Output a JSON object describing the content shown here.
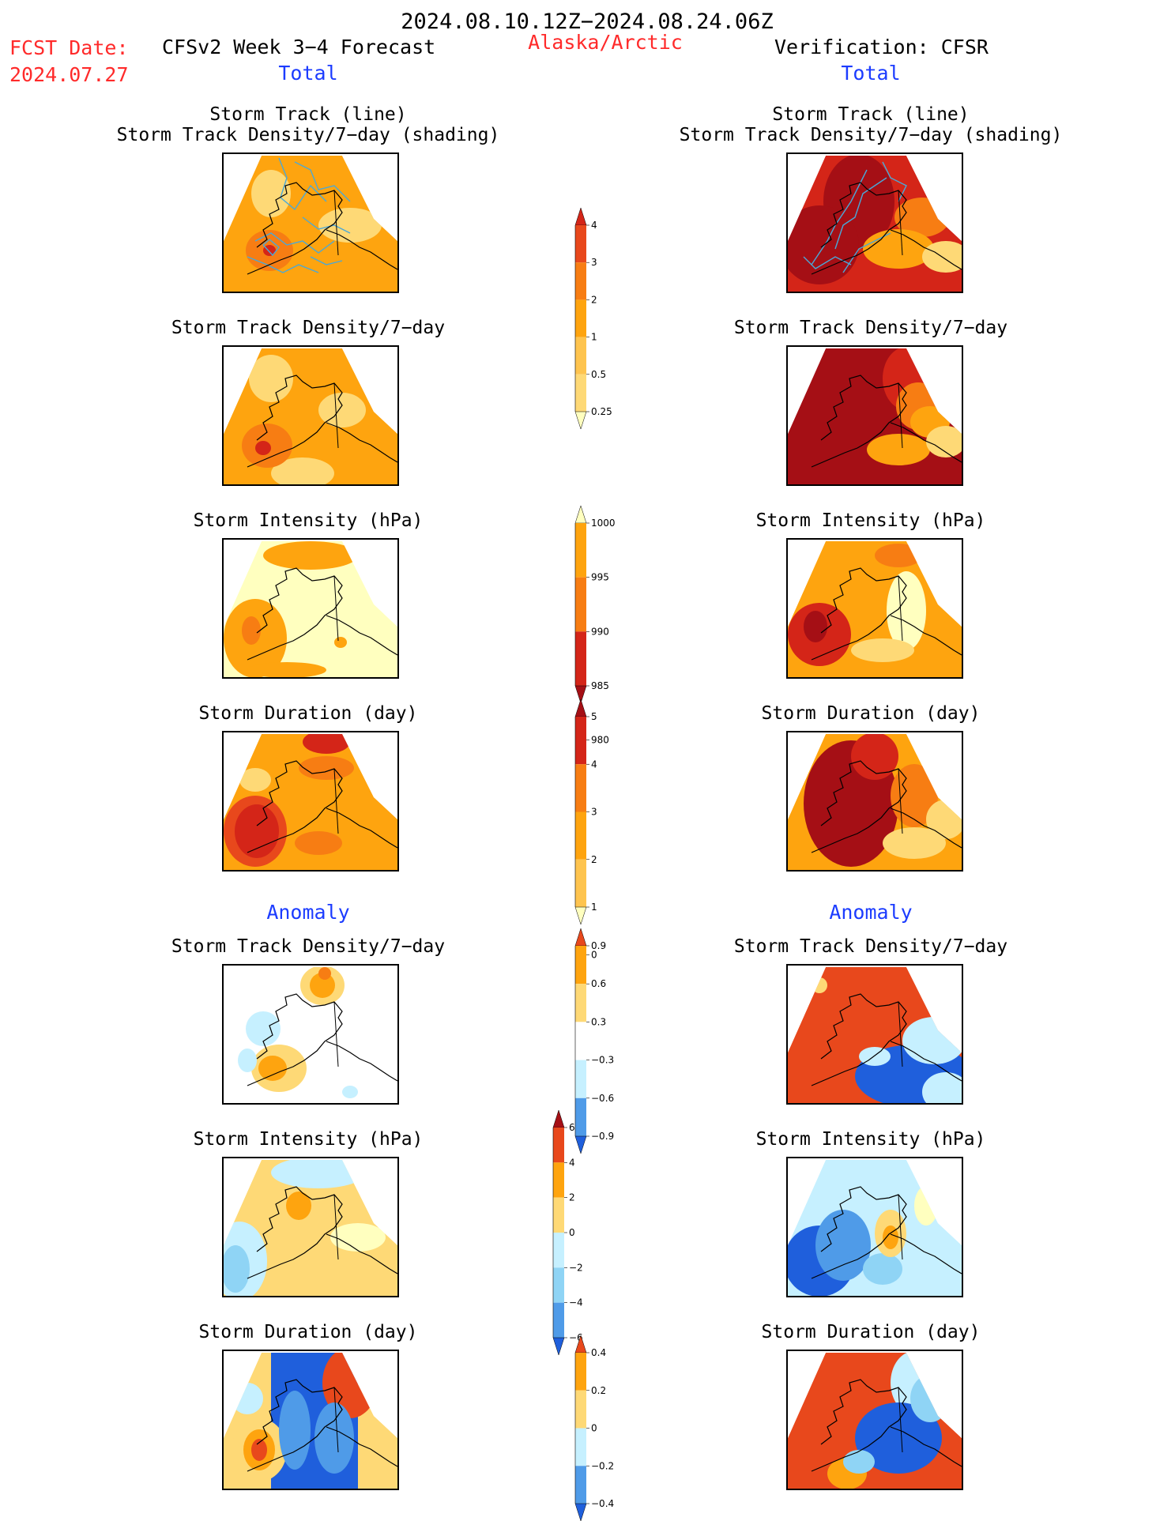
{
  "header": {
    "period": "2024.08.10.12Z−2024.08.24.06Z",
    "fcst_label": "FCST Date:",
    "fcst_date": "2024.07.27",
    "model": "CFSv2 Week 3−4 Forecast",
    "region": "Alaska/Arctic",
    "verification": "Verification: CFSR",
    "total_left": "Total",
    "total_right": "Total",
    "anomaly_left": "Anomaly",
    "anomaly_right": "Anomaly"
  },
  "panel_titles": {
    "track_line": "Storm Track (line)",
    "track_shading": "Storm Track Density/7−day (shading)",
    "density": "Storm Track Density/7−day",
    "intensity": "Storm Intensity (hPa)",
    "duration": "Storm Duration (day)"
  },
  "colors": {
    "pale_yellow": "#ffffbf",
    "light_orange": "#fed976",
    "orange": "#fea40f",
    "dark_orange": "#f77d13",
    "red_orange": "#e8481c",
    "red": "#d42518",
    "dark_red": "#a50f15",
    "pale_blue": "#c6f0ff",
    "light_blue": "#8fd4f5",
    "mid_blue": "#4f9be8",
    "blue": "#1f5fdc",
    "track_line": "#4aa8d8",
    "land_outline": "#000000"
  },
  "chart_data": [
    {
      "type": "heatmap",
      "name": "total-density",
      "colorbar_levels": [
        0.25,
        0.5,
        1,
        2,
        3,
        4
      ],
      "colorbar_labels": [
        "4",
        "3",
        "2",
        "1",
        "0.5",
        "0.25"
      ]
    },
    {
      "type": "heatmap",
      "name": "total-intensity",
      "colorbar_levels": [
        1000,
        995,
        990,
        985,
        980
      ],
      "colorbar_labels": [
        "1000",
        "995",
        "990",
        "985",
        "980"
      ]
    },
    {
      "type": "heatmap",
      "name": "total-duration",
      "colorbar_levels": [
        0,
        1,
        2,
        3,
        4,
        5
      ],
      "colorbar_labels": [
        "5",
        "4",
        "3",
        "2",
        "1",
        "0"
      ]
    },
    {
      "type": "heatmap",
      "name": "anomaly-density",
      "colorbar_levels": [
        -0.9,
        -0.6,
        -0.3,
        0.3,
        0.6,
        0.9
      ],
      "colorbar_labels": [
        "0.9",
        "0.6",
        "0.3",
        "−0.3",
        "−0.6",
        "−0.9"
      ]
    },
    {
      "type": "heatmap",
      "name": "anomaly-intensity",
      "colorbar_levels": [
        -6,
        -4,
        -2,
        0,
        2,
        4,
        6
      ],
      "colorbar_labels": [
        "6",
        "4",
        "2",
        "0",
        "−2",
        "−4",
        "−6"
      ]
    },
    {
      "type": "heatmap",
      "name": "anomaly-duration",
      "colorbar_levels": [
        -0.4,
        -0.2,
        0,
        0.2,
        0.4
      ],
      "colorbar_labels": [
        "0.4",
        "0.2",
        "0",
        "−0.2",
        "−0.4"
      ]
    }
  ]
}
